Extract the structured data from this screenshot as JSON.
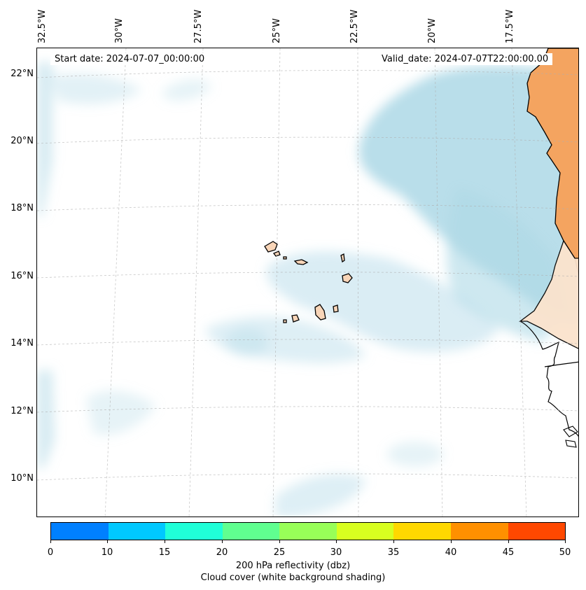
{
  "map": {
    "start_date": "Start date: 2024-07-07_00:00:00",
    "valid_date": "Valid_date: 2024-07-07T22:00:00.00",
    "lon_labels": [
      "32.5°W",
      "30°W",
      "27.5°W",
      "25°W",
      "22.5°W",
      "20°W",
      "17.5°W"
    ],
    "lat_labels": [
      "22°N",
      "20°N",
      "18°N",
      "16°N",
      "14°N",
      "12°N",
      "10°N"
    ]
  },
  "colorbar": {
    "ticks": [
      "0",
      "10",
      "15",
      "20",
      "25",
      "30",
      "35",
      "40",
      "45",
      "50"
    ],
    "colors": [
      "#0080ff",
      "#00c8ff",
      "#20ffd8",
      "#60ff90",
      "#98ff58",
      "#d8ff20",
      "#ffd800",
      "#ff9000",
      "#ff4800"
    ],
    "label_line1": "200 hPa reflectivity (dbz)",
    "label_line2": "Cloud cover (white background shading)"
  },
  "colors": {
    "cloud": "#add8e6",
    "land": "#f4a460",
    "island_fill": "#f8d5b8"
  }
}
